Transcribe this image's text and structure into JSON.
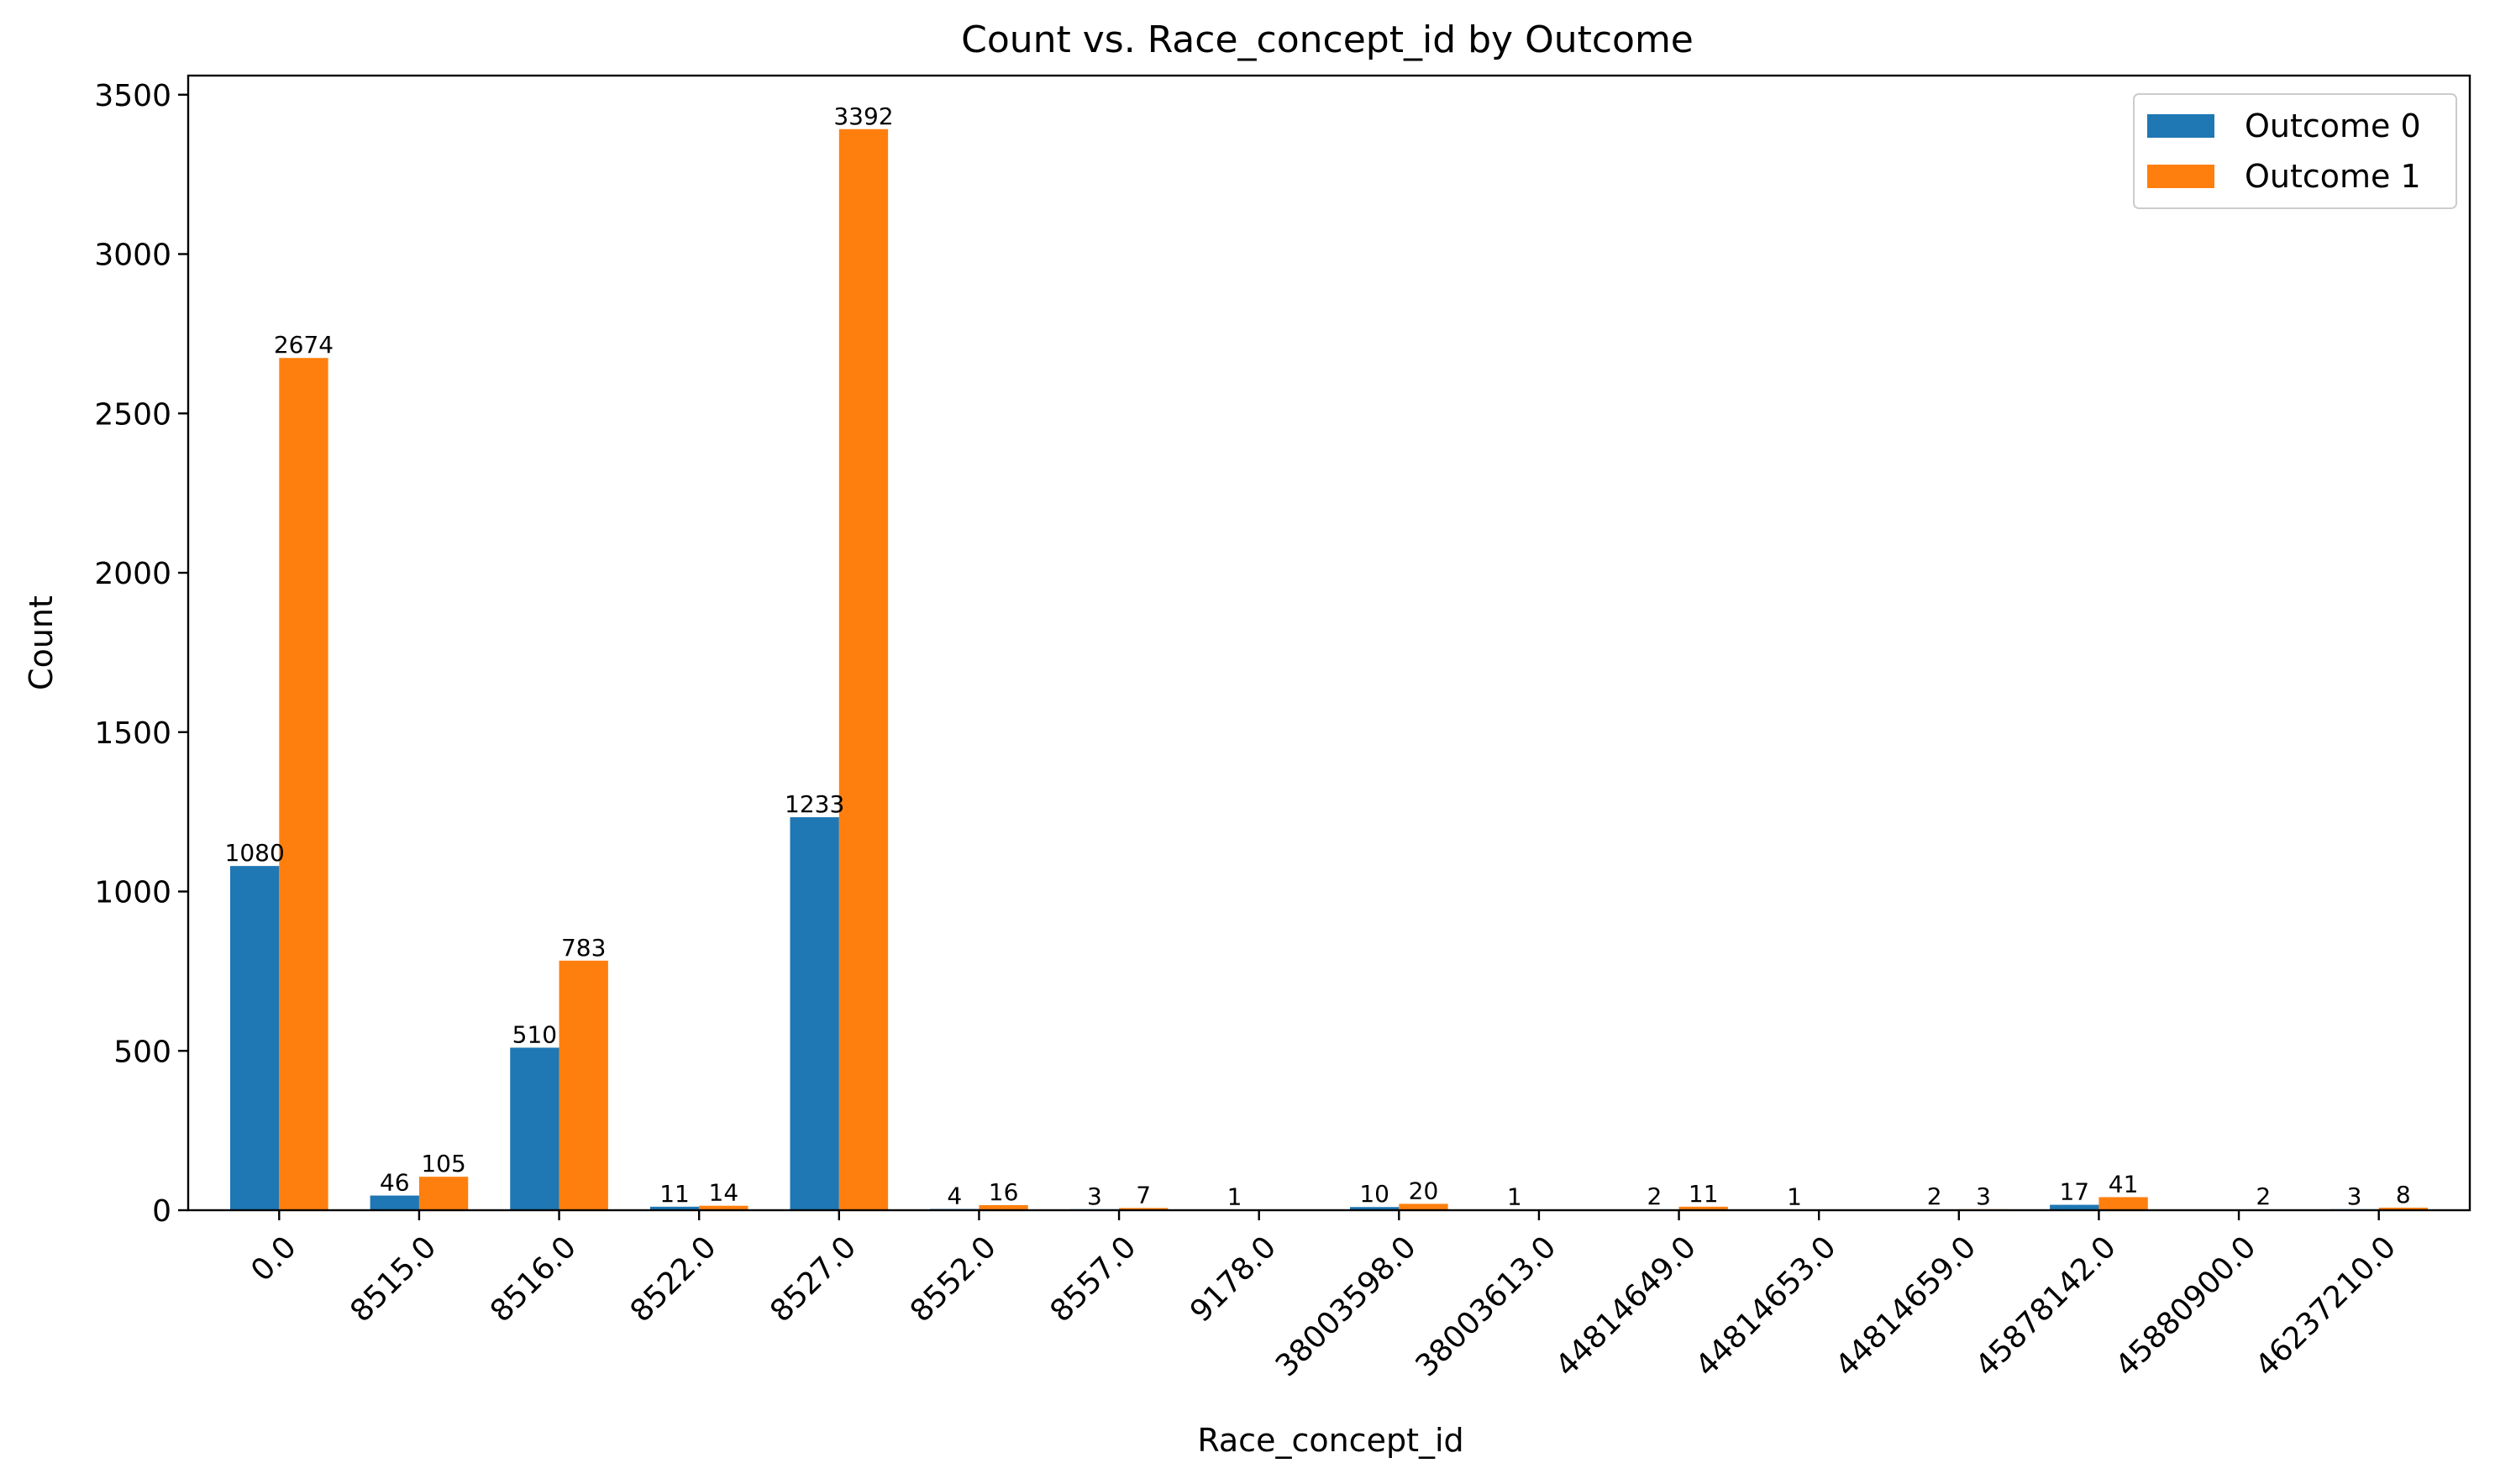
{
  "chart_data": {
    "type": "bar",
    "title": "Count vs. Race_concept_id by Outcome",
    "xlabel": "Race_concept_id",
    "ylabel": "Count",
    "ylim": [
      0,
      3560
    ],
    "yticks": [
      0,
      500,
      1000,
      1500,
      2000,
      2500,
      3000,
      3500
    ],
    "grid": false,
    "legend_position": "top-right",
    "categories": [
      "0.0",
      "8515.0",
      "8516.0",
      "8522.0",
      "8527.0",
      "8552.0",
      "8557.0",
      "9178.0",
      "38003598.0",
      "38003613.0",
      "44814649.0",
      "44814653.0",
      "44814659.0",
      "45878142.0",
      "45880900.0",
      "46237210.0"
    ],
    "series": [
      {
        "name": "Outcome 0",
        "color": "#1f77b4",
        "values": [
          1080,
          46,
          510,
          11,
          1233,
          4,
          3,
          1,
          10,
          1,
          2,
          1,
          2,
          17,
          0,
          3
        ]
      },
      {
        "name": "Outcome 1",
        "color": "#ff7f0e",
        "values": [
          2674,
          105,
          783,
          14,
          3392,
          16,
          7,
          0,
          20,
          0,
          11,
          0,
          3,
          41,
          2,
          8
        ]
      }
    ]
  }
}
